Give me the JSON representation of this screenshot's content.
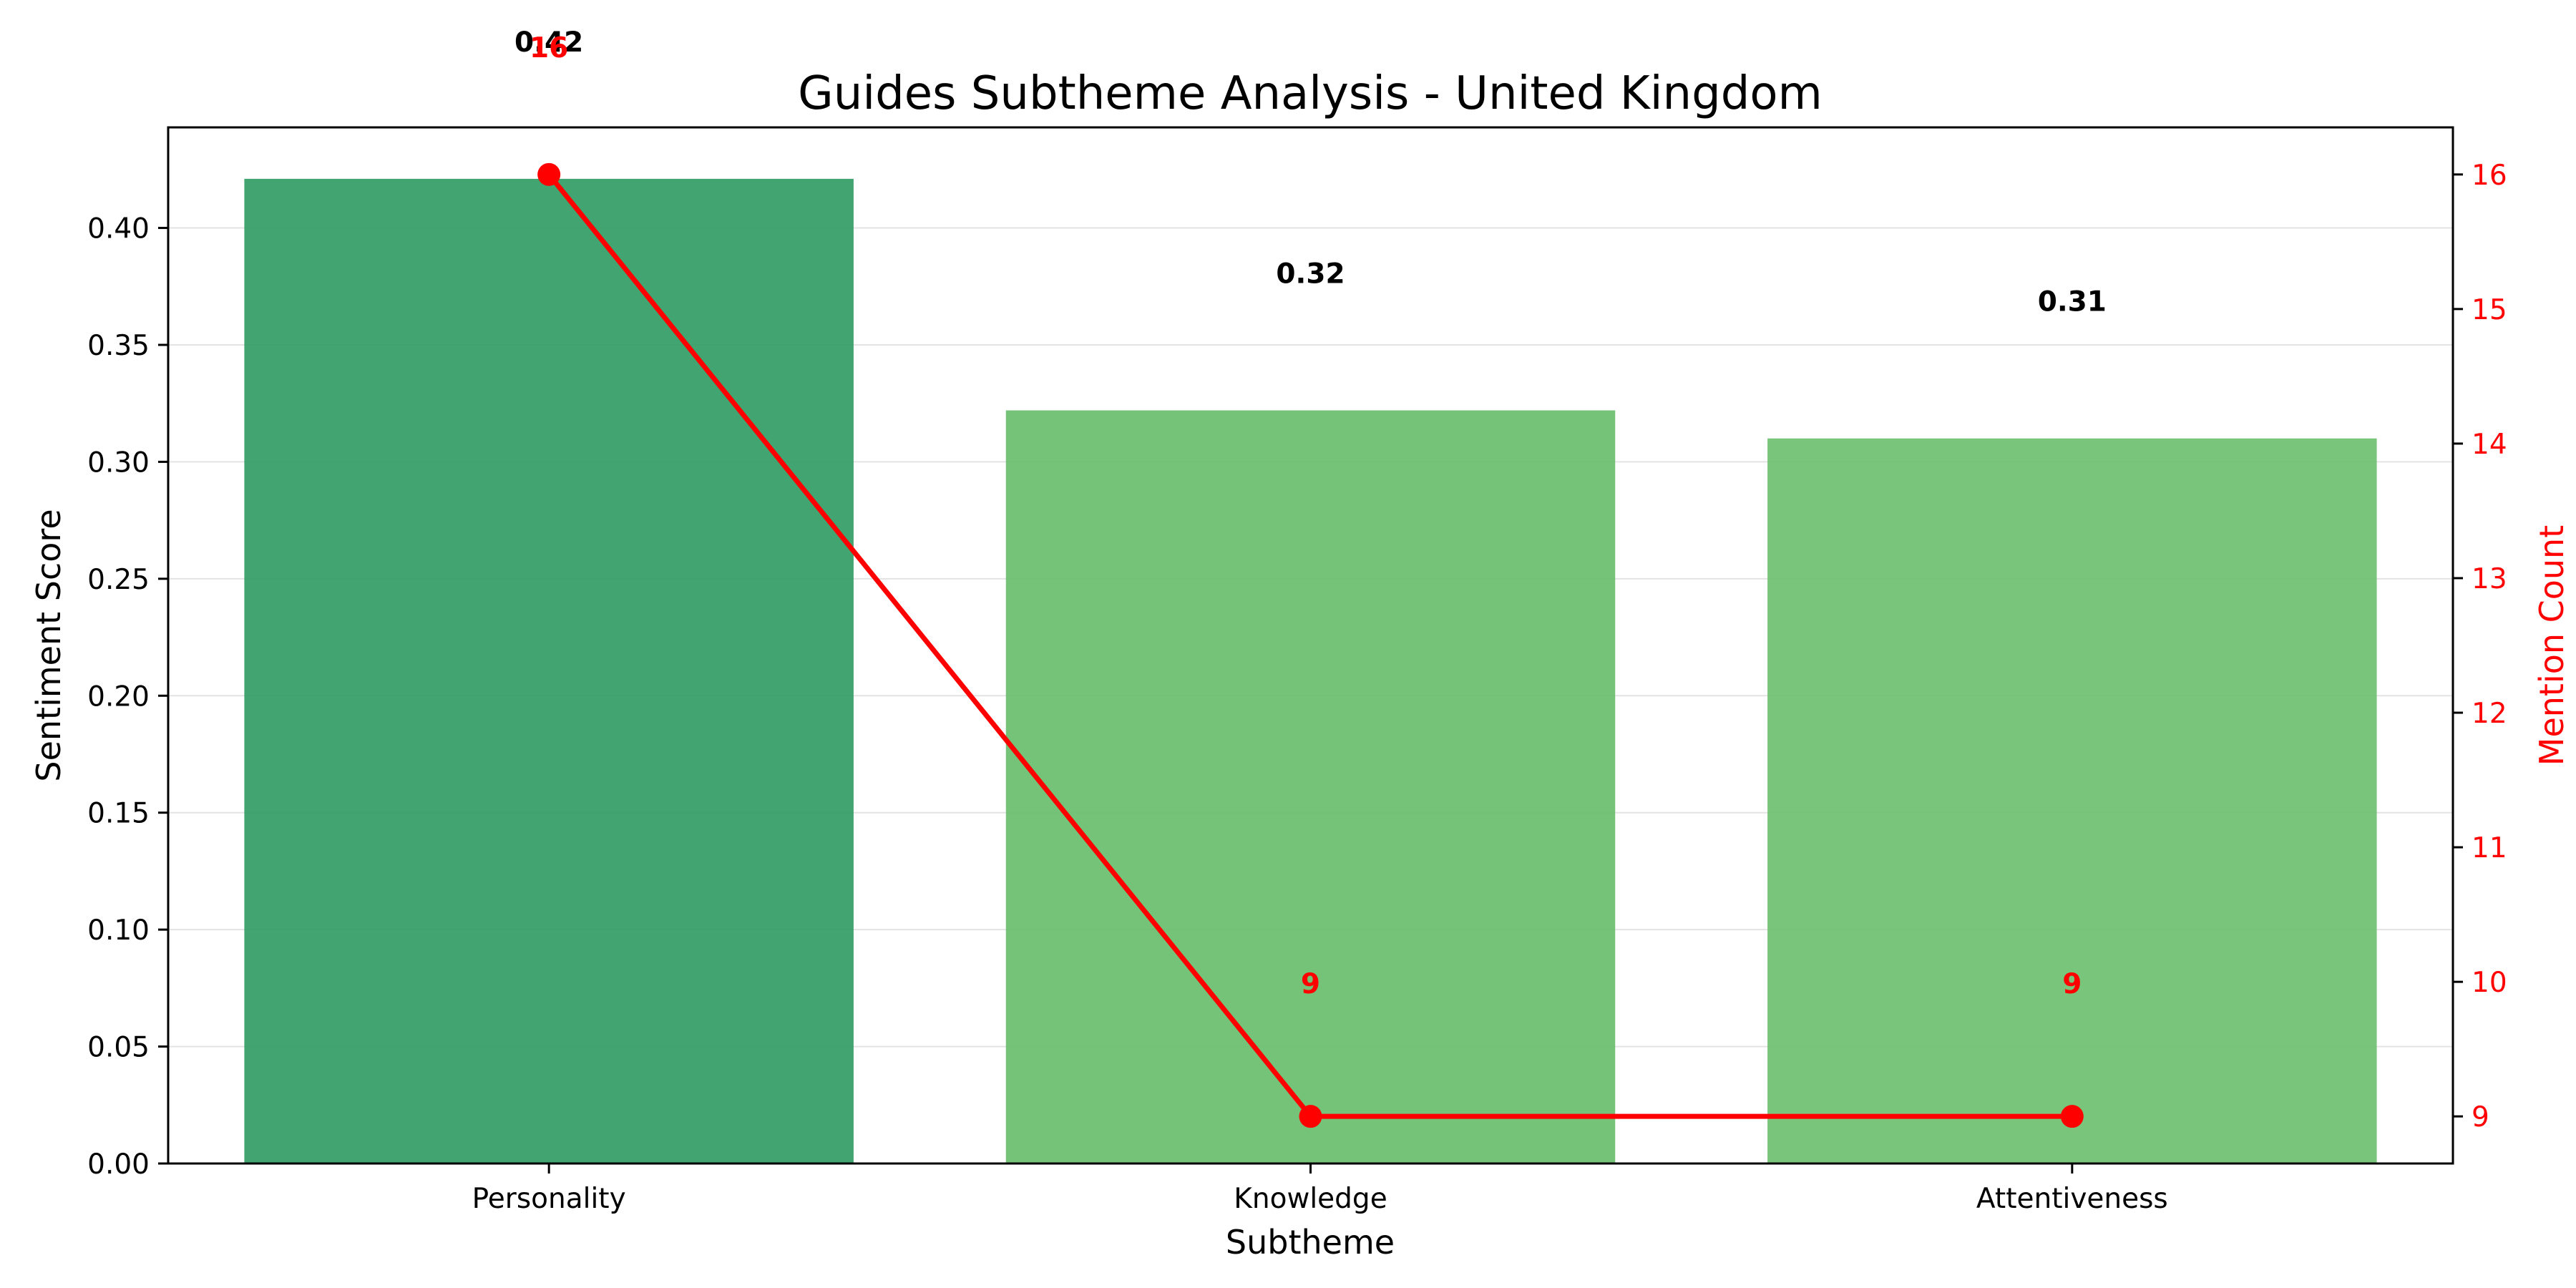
{
  "chart_data": {
    "type": "bar",
    "title": "Guides Subtheme Analysis - United Kingdom",
    "xlabel": "Subtheme",
    "ylabel": "Sentiment Score",
    "y2label": "Mention Count",
    "categories": [
      "Personality",
      "Knowledge",
      "Attentiveness"
    ],
    "series": [
      {
        "type": "bar",
        "axis": "left",
        "values": [
          0.421,
          0.322,
          0.31
        ],
        "value_labels": [
          "0.42",
          "0.32",
          "0.31"
        ],
        "colors": [
          "#2e9a60",
          "#66bb6a",
          "#6cbf6e"
        ]
      },
      {
        "type": "line",
        "axis": "right",
        "values": [
          16,
          9,
          9
        ],
        "value_labels": [
          "16",
          "9",
          "9"
        ],
        "color": "#ff0000"
      }
    ],
    "ylim": [
      0,
      0.443
    ],
    "yticks": [
      "0.00",
      "0.05",
      "0.10",
      "0.15",
      "0.20",
      "0.25",
      "0.30",
      "0.35",
      "0.40"
    ],
    "y2lim": [
      8.65,
      16.35
    ],
    "y2ticks": [
      "9",
      "10",
      "11",
      "12",
      "13",
      "14",
      "15",
      "16"
    ],
    "grid": "horizontal",
    "y2color": "#ff0000",
    "legend": "none"
  }
}
